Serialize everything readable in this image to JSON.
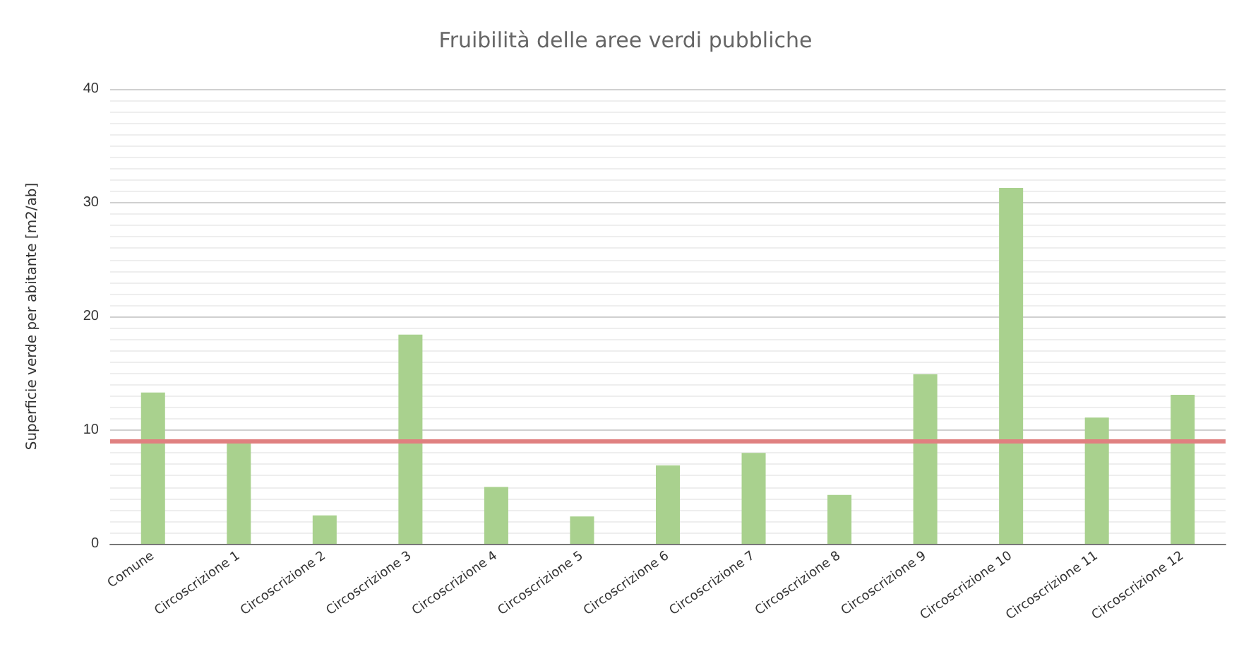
{
  "chart_data": {
    "type": "bar",
    "title": "Fruibilità delle aree verdi pubbliche",
    "ylabel": "Superficie verde per abitante [m2/ab]",
    "categories": [
      "Comune",
      "Circoscrizione 1",
      "Circoscrizione 2",
      "Circoscrizione 3",
      "Circoscrizione 4",
      "Circoscrizione 5",
      "Circoscrizione 6",
      "Circoscrizione 7",
      "Circoscrizione 8",
      "Circoscrizione 9",
      "Circoscrizione 10",
      "Circoscrizione 11",
      "Circoscrizione 12"
    ],
    "values": [
      13.3,
      9.0,
      2.5,
      18.4,
      5.0,
      2.4,
      6.9,
      8.0,
      4.3,
      14.9,
      31.3,
      11.1,
      13.1
    ],
    "color": "#a9d18e",
    "ylim": [
      0,
      40
    ],
    "yticks": [
      0,
      10,
      20,
      30,
      40
    ],
    "grid": "y",
    "ref_lines": [
      {
        "axis": "y",
        "value": 9,
        "color": "#e08080"
      }
    ]
  }
}
